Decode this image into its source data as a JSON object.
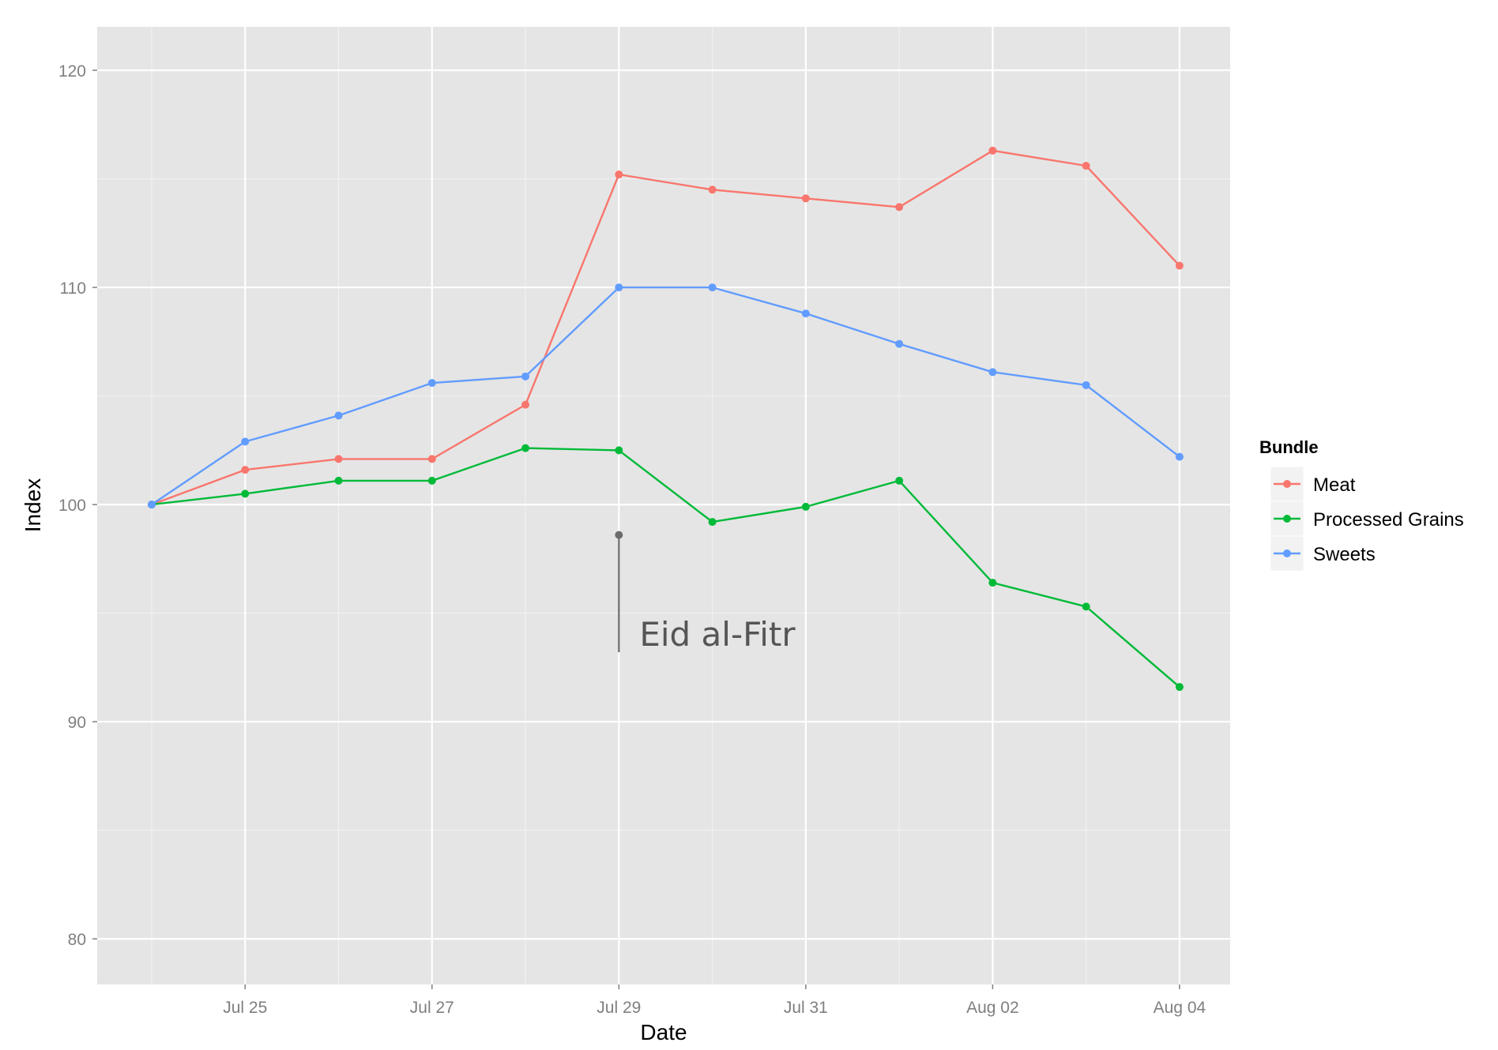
{
  "chart_data": {
    "type": "line",
    "title": "",
    "xlabel": "Date",
    "ylabel": "Index",
    "x": [
      "2014-07-24",
      "2014-07-25",
      "2014-07-26",
      "2014-07-27",
      "2014-07-28",
      "2014-07-29",
      "2014-07-30",
      "2014-07-31",
      "2014-08-01",
      "2014-08-02",
      "2014-08-03",
      "2014-08-04"
    ],
    "x_tick_labels": [
      "Jul 25",
      "Jul 27",
      "Jul 29",
      "Jul 31",
      "Aug 02",
      "Aug 04"
    ],
    "x_tick_dates": [
      "2014-07-25",
      "2014-07-27",
      "2014-07-29",
      "2014-07-31",
      "2014-08-02",
      "2014-08-04"
    ],
    "xlim": [
      "2014-07-23T10:00",
      "2014-08-04T13:00"
    ],
    "y_tick_labels": [
      "80",
      "90",
      "100",
      "110",
      "120"
    ],
    "y_ticks": [
      80,
      90,
      100,
      110,
      120
    ],
    "ylim": [
      77.9,
      122
    ],
    "grid": true,
    "legend": {
      "title": "Bundle",
      "placement": "right"
    },
    "series": [
      {
        "name": "Meat",
        "color": "#F8766D",
        "values": [
          100.0,
          101.6,
          102.1,
          102.1,
          104.6,
          115.2,
          114.5,
          114.1,
          113.7,
          116.3,
          115.6,
          111.0
        ]
      },
      {
        "name": "Processed Grains",
        "color": "#00BA38",
        "values": [
          100.0,
          100.5,
          101.1,
          101.1,
          102.6,
          102.5,
          99.2,
          99.9,
          101.1,
          96.4,
          95.3,
          91.6
        ]
      },
      {
        "name": "Sweets",
        "color": "#619CFF",
        "values": [
          100.0,
          102.9,
          104.1,
          105.6,
          105.9,
          110.0,
          110.0,
          108.8,
          107.4,
          106.1,
          105.5,
          102.2
        ]
      }
    ],
    "annotations": [
      {
        "text": "Eid al-Fitr",
        "x": "2014-07-29",
        "y_top": 98.6,
        "y_bottom": 93.2
      }
    ]
  }
}
